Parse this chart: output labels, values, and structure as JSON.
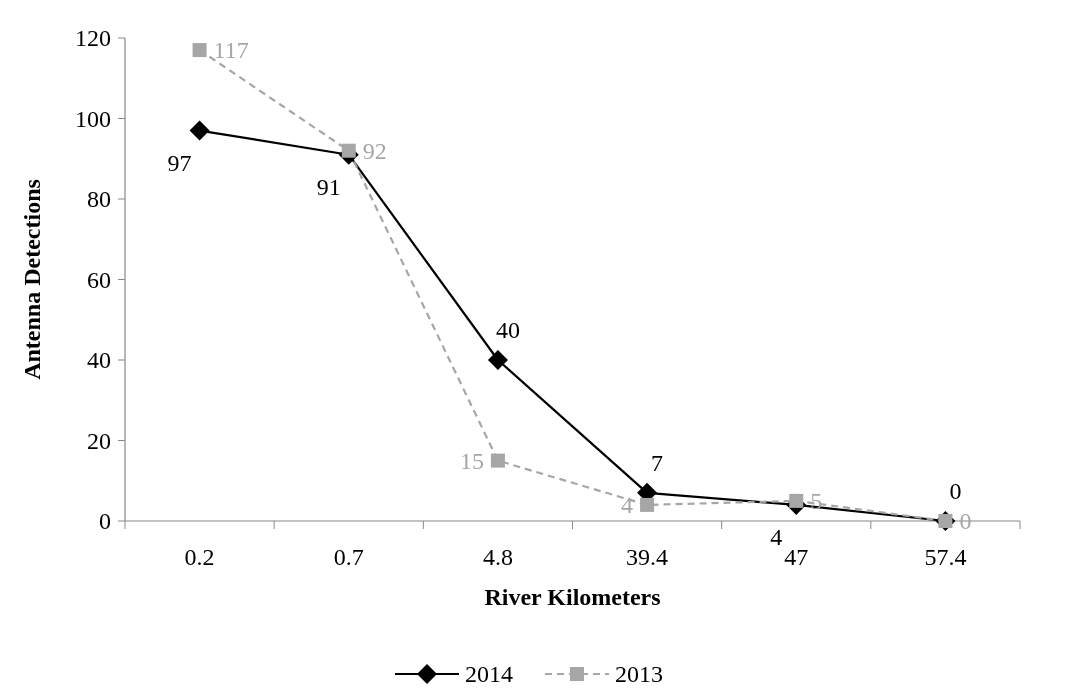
{
  "chart_data": {
    "type": "line",
    "xlabel": "River Kilometers",
    "ylabel": "Antenna Detections",
    "categories": [
      "0.2",
      "0.7",
      "4.8",
      "39.4",
      "47",
      "57.4"
    ],
    "series": [
      {
        "name": "2014",
        "color": "#000000",
        "values": [
          97,
          91,
          40,
          7,
          4,
          0
        ],
        "marker": "diamond",
        "line_style": "solid"
      },
      {
        "name": "2013",
        "color": "#a6a6a6",
        "values": [
          117,
          92,
          15,
          4,
          5,
          0
        ],
        "marker": "square",
        "line_style": "dashed"
      }
    ],
    "ylim": [
      0,
      120
    ],
    "yticks": [
      0,
      20,
      40,
      60,
      80,
      100,
      120
    ],
    "grid": false,
    "legend": "bottom",
    "data_labels": true
  }
}
